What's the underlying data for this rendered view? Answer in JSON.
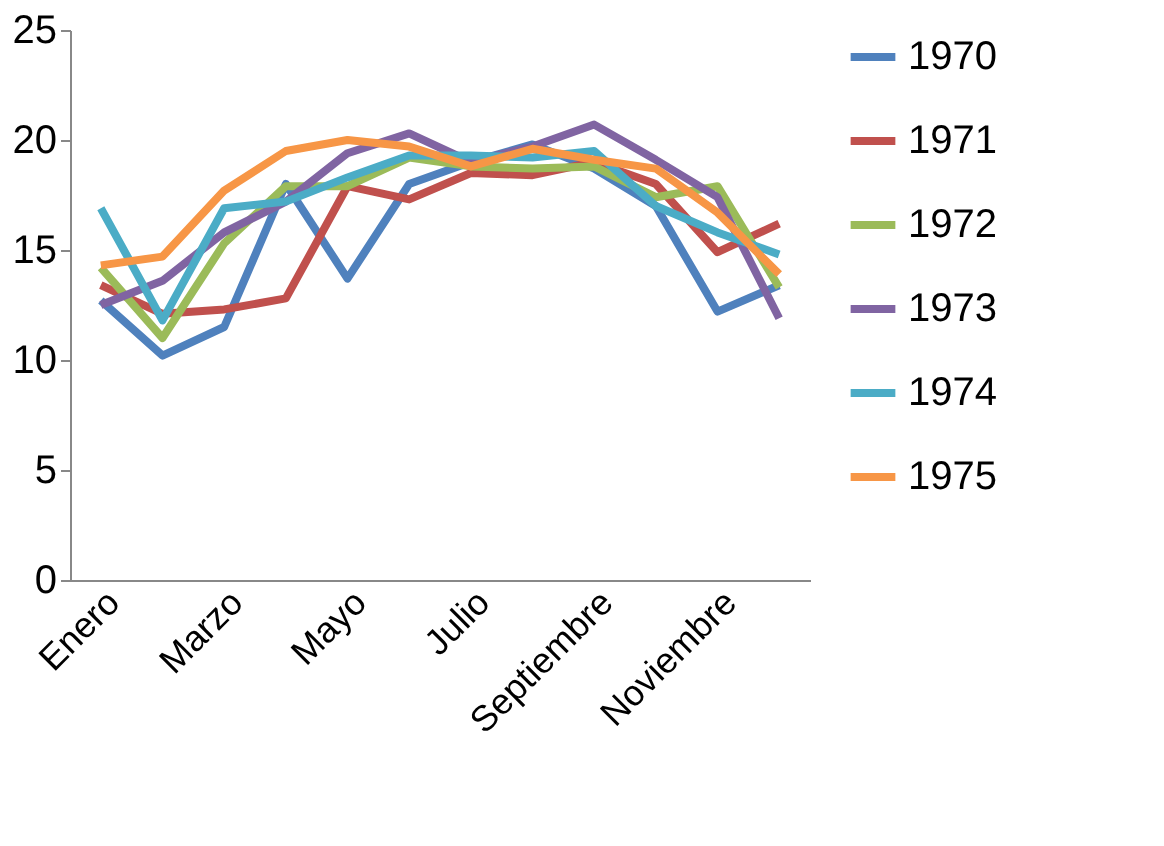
{
  "chart_data": {
    "type": "line",
    "categories": [
      "Enero",
      null,
      "Marzo",
      null,
      "Mayo",
      null,
      "Julio",
      null,
      "Septiembre",
      null,
      "Noviembre",
      null
    ],
    "ylim": [
      0,
      25
    ],
    "yticks": [
      0,
      5,
      10,
      15,
      20,
      25
    ],
    "grid": false,
    "legend": "right",
    "marker": "none",
    "line_style": "solid",
    "series": [
      {
        "name": "1970",
        "color": "#4f81bd",
        "values": [
          12.7,
          10.2,
          11.5,
          18,
          13.7,
          18,
          19,
          19.8,
          18.7,
          17,
          12.2,
          13.4
        ]
      },
      {
        "name": "1971",
        "color": "#c0504d",
        "values": [
          13.4,
          12.1,
          12.3,
          12.8,
          17.9,
          17.3,
          18.5,
          18.4,
          19,
          18,
          14.9,
          16.2
        ]
      },
      {
        "name": "1972",
        "color": "#9bbb59",
        "values": [
          14.2,
          11,
          15.3,
          17.9,
          17.9,
          19.2,
          18.8,
          18.7,
          18.8,
          17.4,
          17.9,
          13.3
        ]
      },
      {
        "name": "1973",
        "color": "#8064a2",
        "values": [
          12.5,
          13.6,
          15.8,
          17.2,
          19.4,
          20.3,
          19,
          19.7,
          20.7,
          19.1,
          17.4,
          11.9
        ]
      },
      {
        "name": "1974",
        "color": "#4bacc6",
        "values": [
          16.9,
          11.8,
          16.9,
          17.2,
          18.3,
          19.3,
          19.3,
          19.2,
          19.5,
          17,
          15.8,
          14.8
        ]
      },
      {
        "name": "1975",
        "color": "#f79646",
        "values": [
          14.3,
          14.7,
          17.7,
          19.5,
          20,
          19.7,
          18.8,
          19.6,
          19.1,
          18.7,
          16.7,
          13.9
        ]
      }
    ]
  }
}
